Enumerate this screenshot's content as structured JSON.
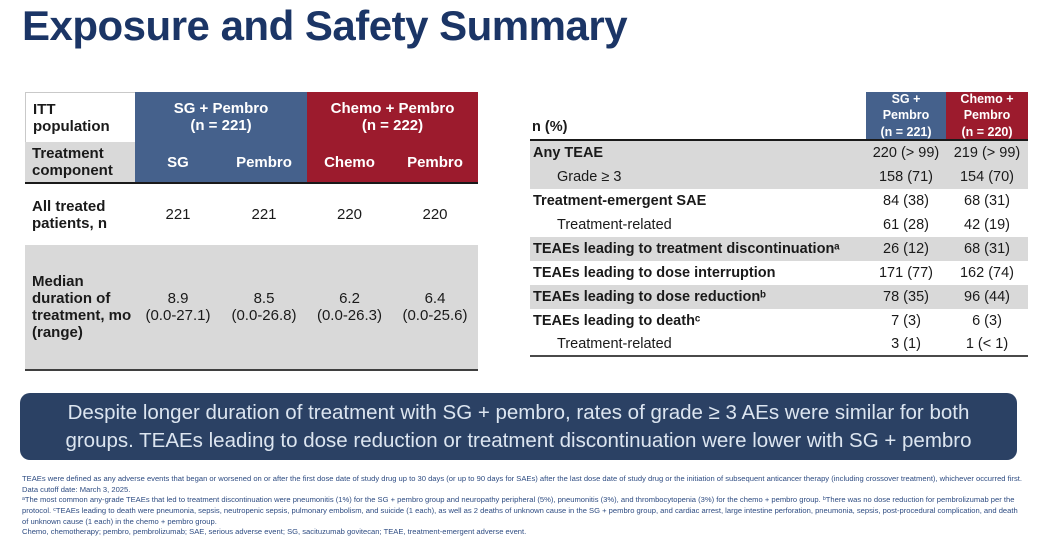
{
  "slide": {
    "title": "Exposure and Safety Summary"
  },
  "colors": {
    "title_navy": "#1B3566",
    "header_blue": "#45618C",
    "header_red": "#9C1B2D",
    "row_gray": "#D9D9D9",
    "summary_bg": "#2B4164",
    "summary_text": "#DCE5F0",
    "footnote_navy": "#2E4C82"
  },
  "exposure_table": {
    "corner_label": "ITT population",
    "groups": [
      {
        "name": "SG + Pembro\n(n = 221)"
      },
      {
        "name": "Chemo + Pembro\n(n = 222)"
      }
    ],
    "component_label": "Treatment\ncomponent",
    "components": [
      "SG",
      "Pembro",
      "Chemo",
      "Pembro"
    ],
    "rows": [
      {
        "label": "All treated\npatients, n",
        "values": [
          "221",
          "221",
          "220",
          "220"
        ]
      },
      {
        "label": "Median\nduration of\ntreatment, mo\n(range)",
        "values": [
          "8.9\n(0.0-27.1)",
          "8.5\n(0.0-26.8)",
          "6.2\n(0.0-26.3)",
          "6.4\n(0.0-25.6)"
        ]
      }
    ]
  },
  "safety_table": {
    "header_label": "n (%)",
    "columns": [
      {
        "name": "SG +\nPembro\n(n = 221)"
      },
      {
        "name": "Chemo +\nPembro\n(n = 220)"
      }
    ],
    "rows": [
      {
        "label": "Any TEAE",
        "sg": "220 (> 99)",
        "chemo": "219 (> 99)"
      },
      {
        "label": "Grade ≥ 3",
        "sg": "158 (71)",
        "chemo": "154 (70)"
      },
      {
        "label": "Treatment-emergent SAE",
        "sg": "84 (38)",
        "chemo": "68 (31)"
      },
      {
        "label": "Treatment-related",
        "sg": "61 (28)",
        "chemo": "42 (19)"
      },
      {
        "label": "TEAEs leading to treatment discontinuationᵃ",
        "sg": "26 (12)",
        "chemo": "68 (31)"
      },
      {
        "label": "TEAEs leading to dose interruption",
        "sg": "171 (77)",
        "chemo": "162 (74)"
      },
      {
        "label": "TEAEs leading to dose reductionᵇ",
        "sg": "78 (35)",
        "chemo": "96 (44)"
      },
      {
        "label": "TEAEs leading to deathᶜ",
        "sg": "7 (3)",
        "chemo": "6 (3)"
      },
      {
        "label": "Treatment-related",
        "sg": "3 (1)",
        "chemo": "1 (< 1)"
      }
    ]
  },
  "summary": {
    "text": "Despite longer duration of treatment with SG + pembro, rates of grade ≥ 3 AEs were similar for both groups. TEAEs leading to dose reduction or treatment discontinuation were lower with SG + pembro"
  },
  "footnotes": [
    "TEAEs were defined as any adverse events that began or worsened on or after the first dose date of study drug up to 30 days (or up to 90 days for SAEs) after the last dose date of study drug or the initiation of subsequent anticancer therapy (including crossover treatment), whichever occurred first. Data cutoff date: March 3, 2025.",
    "ᵃThe most common any-grade TEAEs that led to treatment discontinuation were pneumonitis (1%) for the SG + pembro group and neuropathy peripheral (5%), pneumonitis (3%), and thrombocytopenia (3%) for the chemo + pembro group. ᵇThere was no dose reduction for pembrolizumab per the protocol. ᶜTEAEs leading to death were pneumonia, sepsis, neutropenic sepsis, pulmonary embolism, and suicide (1 each), as well as 2 deaths of unknown cause in the SG + pembro group, and cardiac arrest, large intestine perforation, pneumonia, sepsis, post-procedural complication, and death of unknown cause (1 each) in the chemo + pembro group.",
    "Chemo, chemotherapy; pembro, pembrolizumab; SAE, serious adverse event; SG, sacituzumab govitecan; TEAE, treatment-emergent adverse event."
  ]
}
